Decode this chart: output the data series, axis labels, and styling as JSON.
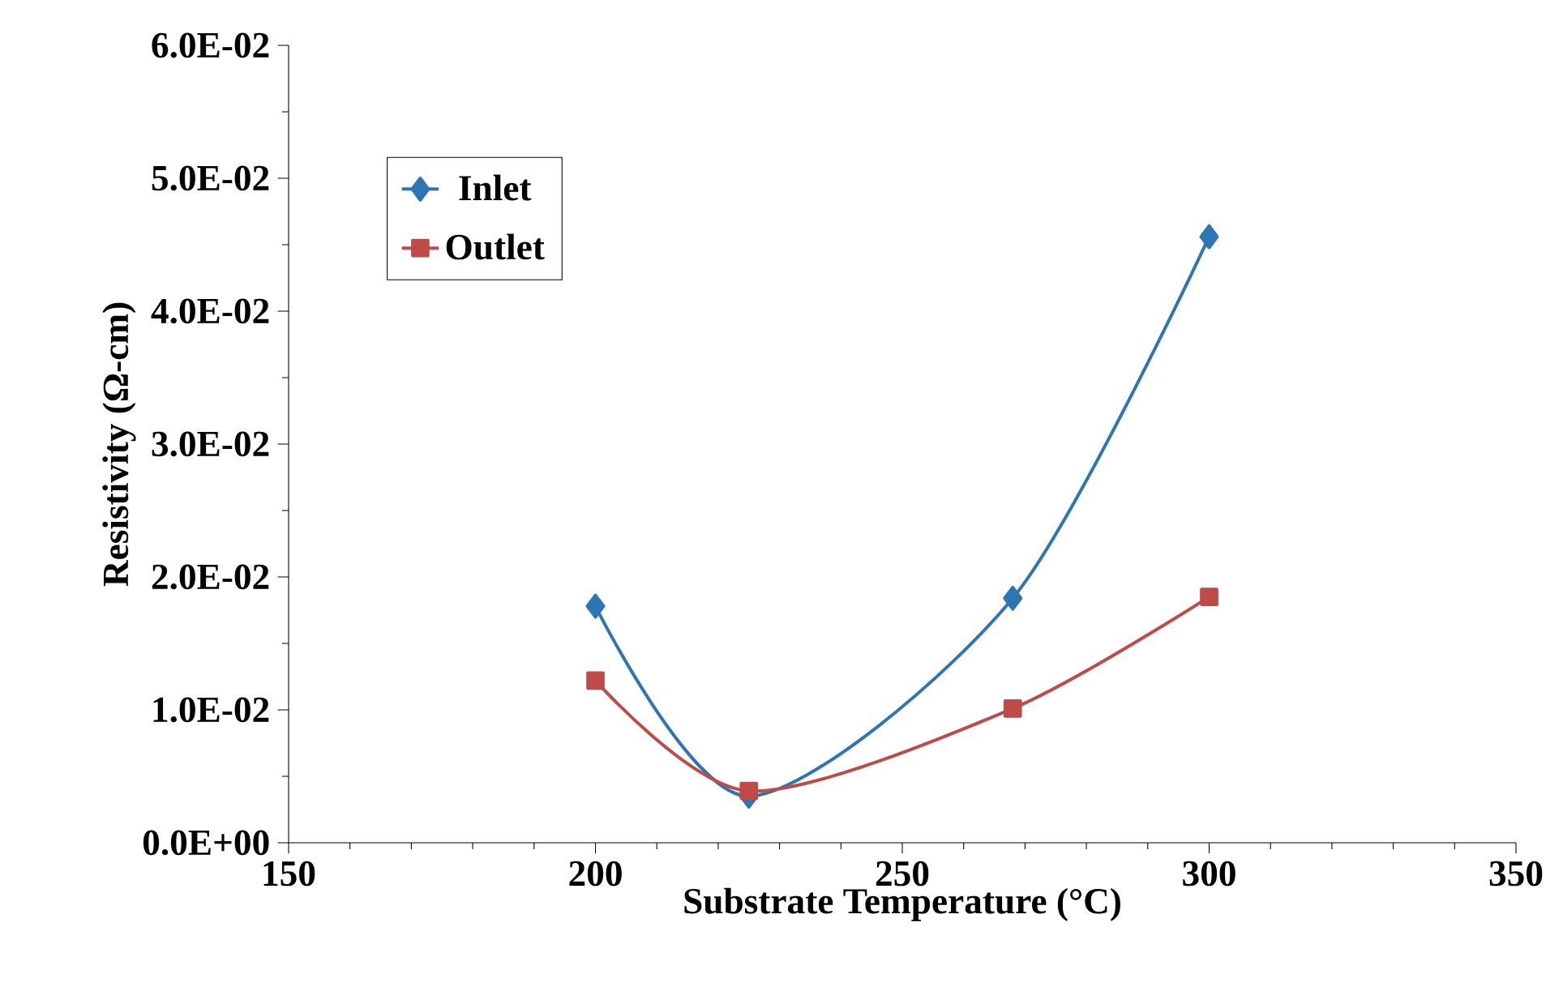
{
  "chart_data": {
    "type": "line",
    "xlabel": "Substrate Temperature (°C)",
    "ylabel": "Resistivity (Ω-cm)",
    "xlim": [
      150,
      350
    ],
    "xticks": [
      150,
      200,
      250,
      300,
      350
    ],
    "ylim": [
      0,
      0.06
    ],
    "yticks": [
      {
        "value": 0,
        "label": "0.0E+00"
      },
      {
        "value": 0.01,
        "label": "1.0E-02"
      },
      {
        "value": 0.02,
        "label": "2.0E-02"
      },
      {
        "value": 0.03,
        "label": "3.0E-02"
      },
      {
        "value": 0.04,
        "label": "4.0E-02"
      },
      {
        "value": 0.05,
        "label": "5.0E-02"
      },
      {
        "value": 0.06,
        "label": "6.0E-02"
      }
    ],
    "grid": false,
    "legend": "top left",
    "series": [
      {
        "name": "Inlet",
        "color": "#2e75b6",
        "marker": "diamond",
        "x": [
          200,
          225,
          268,
          300
        ],
        "values": [
          0.0178,
          0.0035,
          0.0184,
          0.0456
        ]
      },
      {
        "name": "Outlet",
        "color": "#be4b48",
        "marker": "square",
        "x": [
          200,
          225,
          268,
          300
        ],
        "values": [
          0.0122,
          0.0039,
          0.0101,
          0.0185
        ]
      }
    ]
  }
}
